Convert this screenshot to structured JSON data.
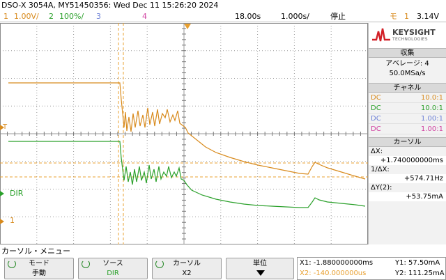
{
  "title": "DSO-X 3054A, MY51450356: Wed Dec 11 15:26:20 2024",
  "status": {
    "ch1_num": "1",
    "ch1_scale": "1.00V/",
    "ch2_num": "2",
    "ch2_scale": "100%/",
    "ch3_num": "3",
    "ch4_num": "4",
    "delay": "18.00s",
    "timebase": "1.000s/",
    "run_state": "停止",
    "trigger_mode": "モ",
    "trigger_ch": "1",
    "trigger_level": "3.14V"
  },
  "colors": {
    "ch1": "#d88a1c",
    "ch2": "#2aa02a",
    "ch3": "#6b7fd6",
    "ch4": "#d040a0",
    "cursor": "#e8a030"
  },
  "brand": {
    "name": "KEYSIGHT",
    "sub": "TECHNOLOGIES"
  },
  "acquire": {
    "header": "収集",
    "mode": "アベレージ: 4",
    "rate": "50.0MSa/s"
  },
  "channels": {
    "header": "チャネル",
    "rows": [
      {
        "coupling": "DC",
        "probe": "10.0:1"
      },
      {
        "coupling": "DC",
        "probe": "10.0:1"
      },
      {
        "coupling": "DC",
        "probe": "1.00:1"
      },
      {
        "coupling": "DC",
        "probe": "1.00:1"
      }
    ]
  },
  "cursors": {
    "header": "カーソル",
    "dx_label": "ΔX:",
    "dx_value": "+1.740000000ms",
    "inv_label": "1/ΔX:",
    "inv_value": "+574.71Hz",
    "dy_label": "ΔY(2):",
    "dy_value": "+53.75mA"
  },
  "trace_labels": {
    "ch2": "DIR",
    "ch1": "1",
    "trigger_marker": "T"
  },
  "menu": {
    "title": "カーソル・メニュー",
    "mode": {
      "label": "モード",
      "value": "手動"
    },
    "source": {
      "label": "ソース",
      "value": "DIR"
    },
    "cursor": {
      "label": "カーソル",
      "value": "X2"
    },
    "units": {
      "label": "単位"
    }
  },
  "readout": {
    "x1": "X1: -1.880000000ms",
    "x2": "X2: -140.000000us",
    "y1": "Y1: 57.50mA",
    "y2": "Y2: 111.25mA"
  }
}
